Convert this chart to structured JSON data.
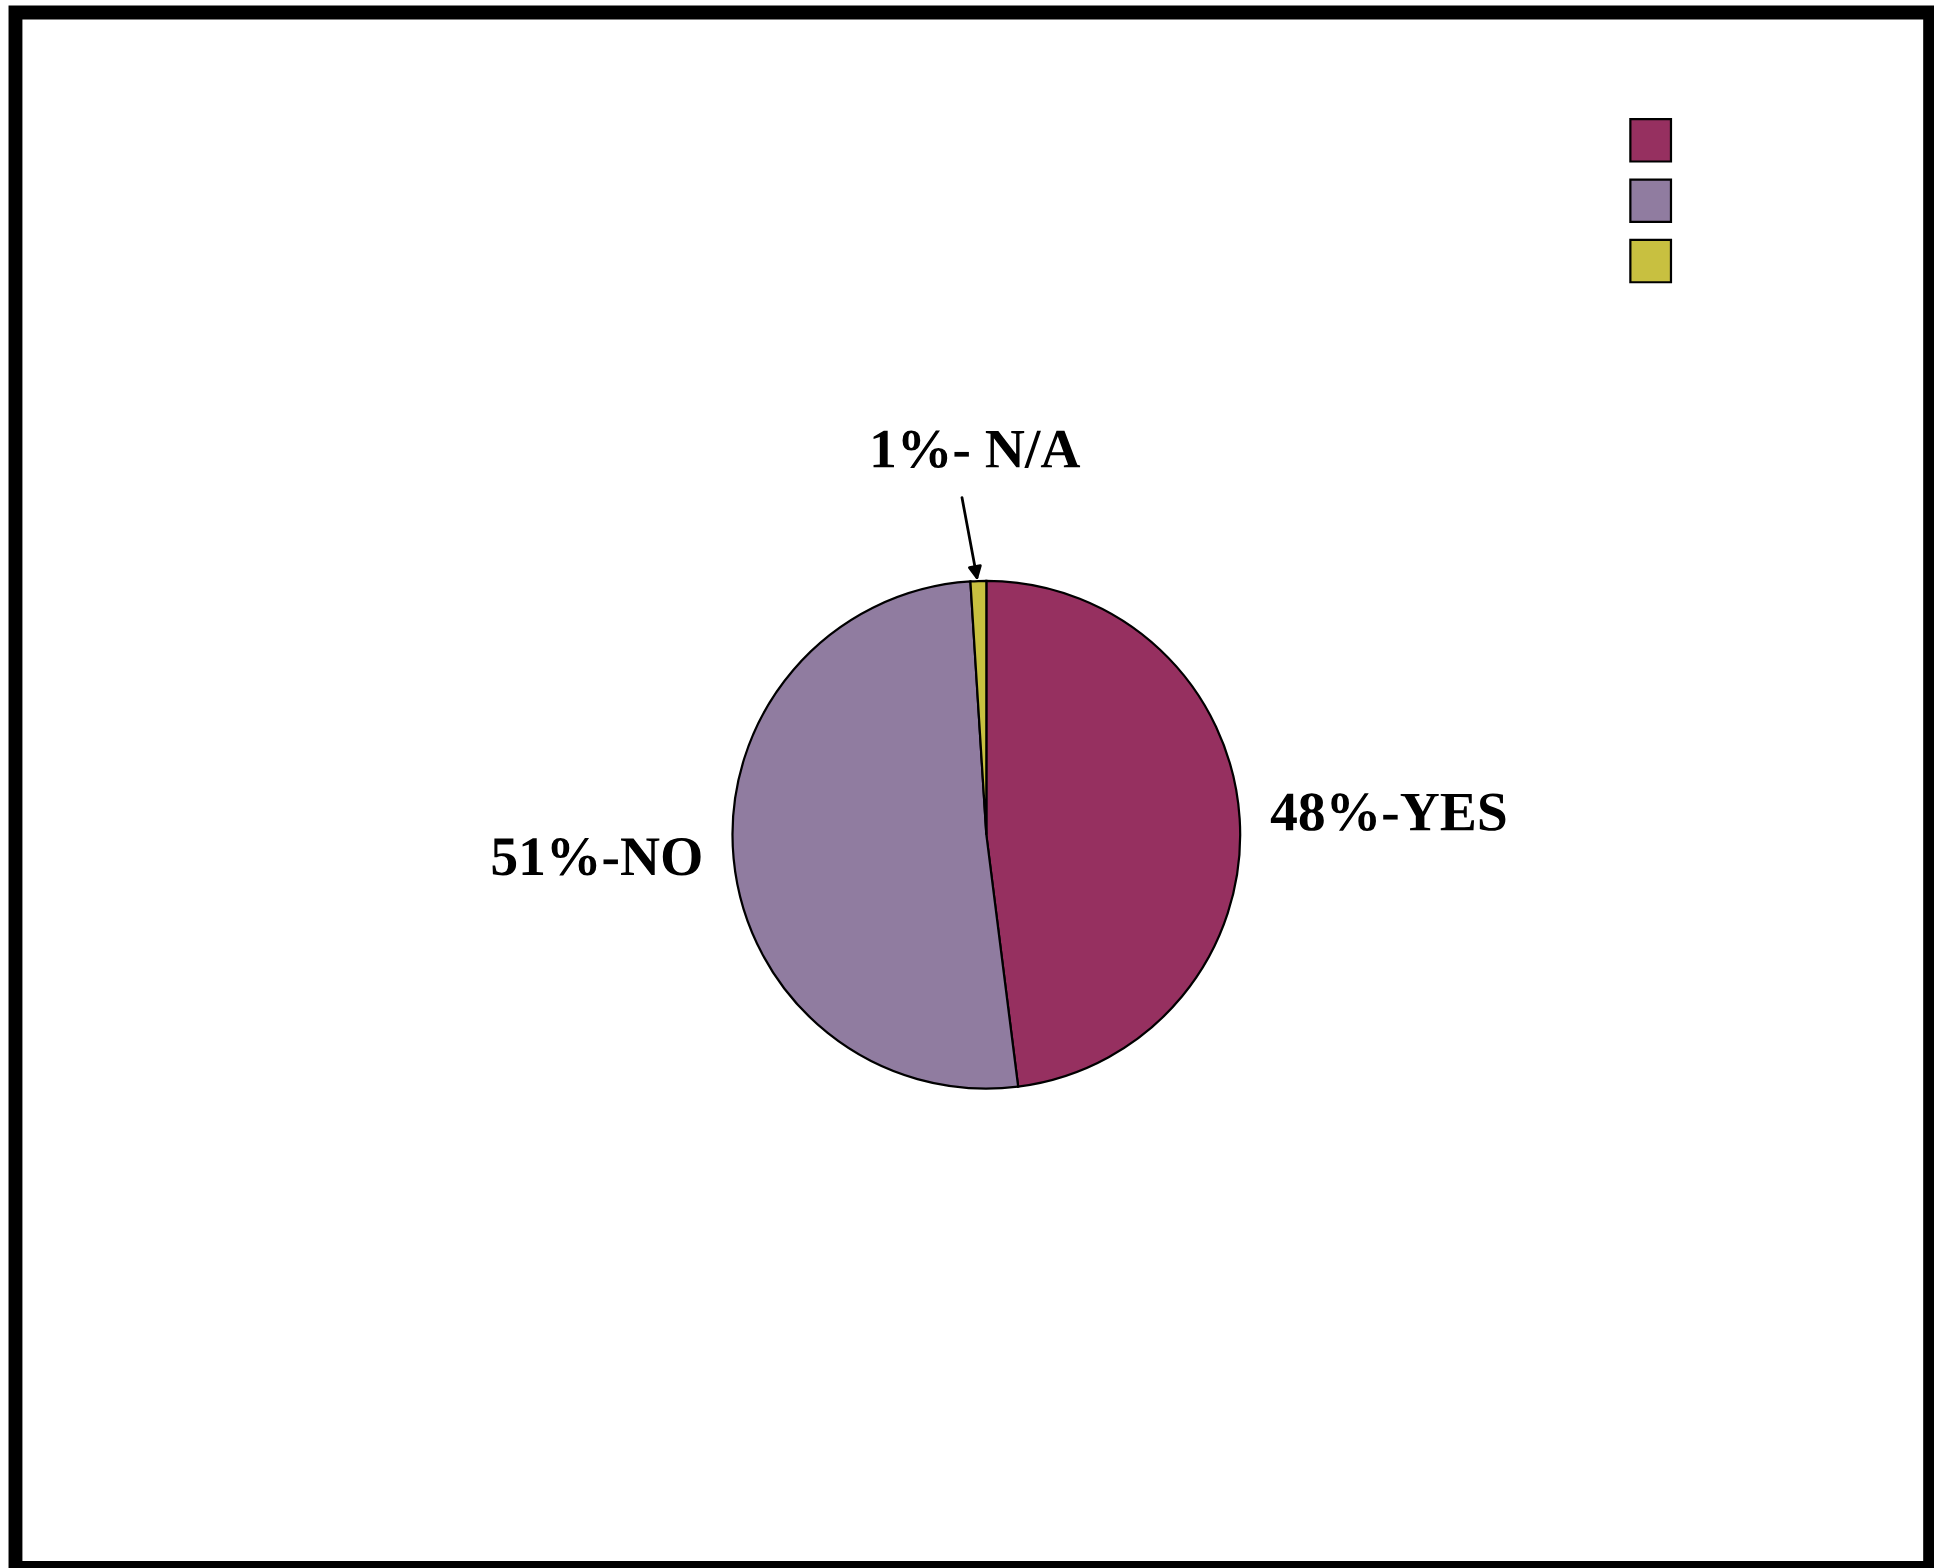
{
  "chart_data": {
    "type": "pie",
    "categories": [
      null,
      null,
      null
    ],
    "values": [
      48,
      51,
      1
    ],
    "colors": [
      "#963060",
      "#907ca0",
      "#c8c040"
    ],
    "value_labels": [
      "48%-YES",
      "51%-NO",
      "1%- N/A"
    ]
  }
}
